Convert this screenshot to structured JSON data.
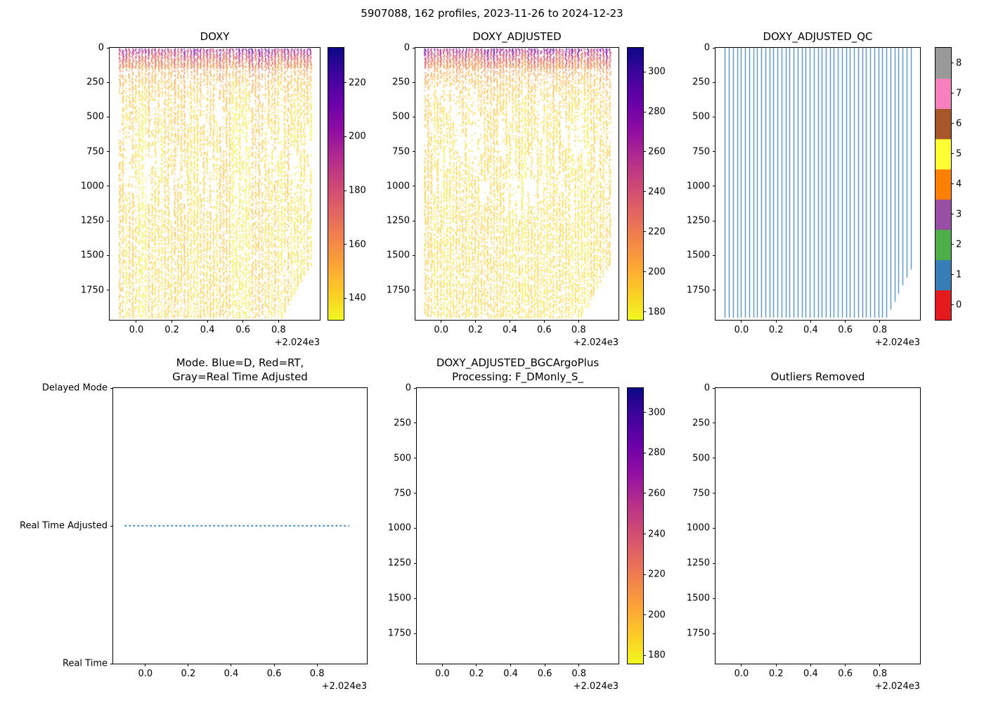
{
  "figure": {
    "title": "5907088, 162 profiles, 2023-11-26 to 2024-12-23"
  },
  "axes": {
    "x_tick_values": [
      0.0,
      0.2,
      0.4,
      0.6,
      0.8
    ],
    "x_tick_labels": [
      "0.0",
      "0.2",
      "0.4",
      "0.6",
      "0.8"
    ],
    "x_offset_label": "+2.024e3",
    "xlim": [
      -0.15,
      1.032
    ],
    "depth_tick_values": [
      0,
      250,
      500,
      750,
      1000,
      1250,
      1500,
      1750
    ],
    "depth_tick_labels": [
      "0",
      "250",
      "500",
      "750",
      "1000",
      "1250",
      "1500",
      "1750"
    ],
    "depth_axis_max": 1965
  },
  "chart_data": [
    {
      "id": "doxy",
      "type": "scatter",
      "render": "profile_scatter",
      "title": "DOXY",
      "seed": 42,
      "n_profiles": 162,
      "visual_columns": 60,
      "time_range": [
        -0.096,
        0.978
      ],
      "max_depth": 1950,
      "shallowing_tail_columns": 9,
      "surface_typical_range": [
        185,
        212
      ],
      "surface_high_range": [
        219,
        229
      ],
      "deep_value_range": [
        134,
        148
      ],
      "decay_depth_m": 120,
      "colorbar": {
        "style": "continuous",
        "colormap": "plasma_r",
        "vmin": 132,
        "vmax": 233,
        "tick_values": [
          140,
          160,
          180,
          200,
          220
        ],
        "tick_labels": [
          "140",
          "160",
          "180",
          "200",
          "220"
        ]
      }
    },
    {
      "id": "doxy_adjusted",
      "type": "scatter",
      "render": "profile_scatter",
      "title": "DOXY_ADJUSTED",
      "seed": 7,
      "n_profiles": 162,
      "visual_columns": 60,
      "time_range": [
        -0.096,
        0.978
      ],
      "max_depth": 1950,
      "shallowing_tail_columns": 9,
      "surface_typical_range": [
        248,
        288
      ],
      "surface_high_range": [
        298,
        309
      ],
      "deep_value_range": [
        180,
        194
      ],
      "decay_depth_m": 120,
      "colorbar": {
        "style": "continuous",
        "colormap": "plasma_r",
        "vmin": 176,
        "vmax": 312,
        "tick_values": [
          180,
          200,
          220,
          240,
          260,
          280,
          300
        ],
        "tick_labels": [
          "180",
          "200",
          "220",
          "240",
          "260",
          "280",
          "300"
        ]
      }
    },
    {
      "id": "doxy_adjusted_qc",
      "type": "lines",
      "render": "qc_lines",
      "title": "DOXY_ADJUSTED_QC",
      "visual_columns": 47,
      "time_range": [
        -0.096,
        0.978
      ],
      "max_depth": 1950,
      "shallowing_tail_columns": 6,
      "line_color": "#377eb8",
      "qc_values_shown": [
        1
      ],
      "colorbar": {
        "style": "discrete",
        "colors": [
          "#e41a1c",
          "#377eb8",
          "#4daf4a",
          "#984ea3",
          "#ff7f00",
          "#ffff33",
          "#a65628",
          "#f781bf",
          "#999999"
        ],
        "tick_values": [
          0,
          1,
          2,
          3,
          4,
          5,
          6,
          7,
          8
        ],
        "tick_labels": [
          "0",
          "1",
          "2",
          "3",
          "4",
          "5",
          "6",
          "7",
          "8"
        ]
      }
    },
    {
      "id": "mode",
      "type": "line",
      "render": "mode_line",
      "title": "Mode. Blue=D, Red=RT,\nGray=Real Time Adjusted",
      "y_categories": [
        "Real Time",
        "Real Time Adjusted",
        "Delayed Mode"
      ],
      "line_color": "#1f77b4",
      "line_style": "dotted",
      "series": [
        {
          "name": "mode",
          "value": "Real Time Adjusted",
          "x_start": -0.096,
          "x_end": 0.95
        }
      ]
    },
    {
      "id": "doxy_adjusted_bgcargoplus",
      "type": "scatter",
      "render": "empty",
      "empty": true,
      "title": "DOXY_ADJUSTED_BGCArgoPlus\nProcessing: F_DMonly_S_",
      "colorbar": {
        "style": "continuous",
        "colormap": "plasma_r",
        "vmin": 176,
        "vmax": 312,
        "tick_values": [
          180,
          200,
          220,
          240,
          260,
          280,
          300
        ],
        "tick_labels": [
          "180",
          "200",
          "220",
          "240",
          "260",
          "280",
          "300"
        ]
      }
    },
    {
      "id": "outliers_removed",
      "type": "scatter",
      "render": "empty",
      "empty": true,
      "title": "Outliers Removed"
    }
  ]
}
